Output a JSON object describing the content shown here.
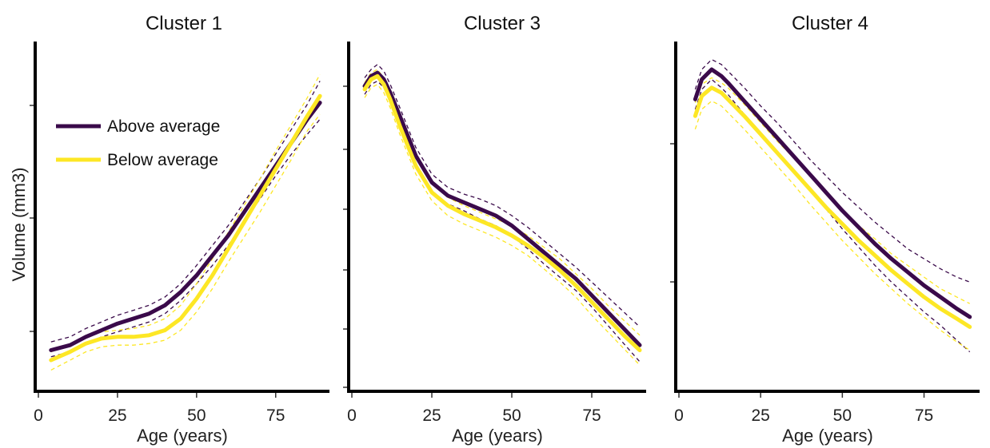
{
  "figure": {
    "ylabel": "Volume (mm3)",
    "colors": {
      "above": "#3a0a4a",
      "below": "#fde725"
    }
  },
  "legend": {
    "location": "upper-left of first panel",
    "entries": [
      {
        "name": "Above average",
        "color": "#3a0a4a"
      },
      {
        "name": "Below average",
        "color": "#fde725"
      }
    ]
  },
  "chart_data": [
    {
      "type": "line",
      "title": "Cluster 1",
      "xlabel": "Age (years)",
      "ylabel": "Volume (mm3)",
      "xlim": [
        0,
        92
      ],
      "ylim": [
        0,
        100
      ],
      "xticks": [
        0,
        25,
        50,
        75
      ],
      "yticks": [],
      "y_tick_labels_shown": false,
      "series": [
        {
          "name": "Above average",
          "x": [
            4,
            10,
            15,
            20,
            25,
            30,
            35,
            40,
            45,
            50,
            55,
            60,
            65,
            70,
            75,
            80,
            85,
            89
          ],
          "y": [
            9.5,
            11,
            13.5,
            15.5,
            17.5,
            19,
            20.5,
            23,
            27,
            32,
            38,
            44,
            51,
            58,
            65,
            72,
            79,
            84
          ],
          "ci_upper": [
            12,
            13.5,
            16,
            18,
            20,
            21.5,
            23,
            25.5,
            29.5,
            35,
            41,
            47,
            54,
            61,
            68.5,
            76,
            83.5,
            90.5
          ],
          "ci_lower": [
            7.5,
            9,
            11.5,
            13.5,
            15,
            16.5,
            18,
            20.5,
            24.5,
            29.5,
            35,
            41,
            48,
            55,
            62,
            68.5,
            74.5,
            79
          ]
        },
        {
          "name": "Below average",
          "x": [
            4,
            10,
            15,
            20,
            25,
            30,
            35,
            40,
            45,
            50,
            55,
            60,
            65,
            70,
            75,
            80,
            85,
            89
          ],
          "y": [
            6.5,
            9,
            11.5,
            13,
            13.5,
            13.5,
            14,
            15.5,
            19,
            25,
            32,
            40,
            48,
            56,
            64,
            72,
            80,
            86
          ],
          "ci_upper": [
            9,
            11.5,
            13.5,
            15,
            15.5,
            16,
            17,
            19,
            23,
            29.5,
            37,
            45,
            53,
            61,
            69.5,
            77.5,
            85.5,
            92.5
          ],
          "ci_lower": [
            3.5,
            6.5,
            9,
            10.5,
            11,
            11,
            11.5,
            12.5,
            15.5,
            21,
            28,
            36,
            43.5,
            51,
            59,
            67,
            75.5,
            80.5
          ]
        }
      ]
    },
    {
      "type": "line",
      "title": "Cluster 3",
      "xlabel": "Age (years)",
      "ylabel": "",
      "xlim": [
        0,
        92
      ],
      "ylim": [
        0,
        100
      ],
      "xticks": [
        0,
        25,
        50,
        75
      ],
      "yticks": [],
      "y_tick_labels_shown": false,
      "series": [
        {
          "name": "Above average",
          "x": [
            4,
            6,
            8,
            10,
            12,
            15,
            20,
            25,
            30,
            35,
            40,
            45,
            50,
            55,
            60,
            65,
            70,
            75,
            80,
            85,
            90
          ],
          "y": [
            89,
            92,
            93,
            91,
            87,
            80,
            68,
            60,
            56,
            54,
            52,
            50,
            47,
            43,
            39,
            35,
            31,
            26,
            21,
            16,
            11
          ],
          "ci_upper": [
            91.5,
            94,
            95.5,
            93.5,
            89.5,
            82.5,
            70.5,
            62.5,
            58.5,
            56.5,
            55,
            53,
            50,
            46.5,
            42.5,
            38.5,
            34.5,
            30,
            25.5,
            21,
            16.5
          ],
          "ci_lower": [
            86.5,
            89.5,
            90.5,
            88.5,
            84.5,
            77.5,
            65.5,
            57.5,
            53.5,
            51.5,
            49,
            47,
            44,
            40,
            35.5,
            31.5,
            27.5,
            22.5,
            17,
            11.5,
            6
          ]
        },
        {
          "name": "Below average",
          "x": [
            4,
            6,
            8,
            10,
            12,
            15,
            20,
            25,
            30,
            35,
            40,
            45,
            50,
            55,
            60,
            65,
            70,
            75,
            80,
            85,
            90
          ],
          "y": [
            88,
            91,
            92,
            89.5,
            85,
            77,
            65,
            57,
            53,
            50.5,
            48.5,
            46.5,
            44,
            41,
            37.5,
            33.5,
            29,
            24,
            19,
            14,
            9.5
          ],
          "ci_upper": [
            90,
            93,
            94,
            91.5,
            87,
            79,
            67.5,
            59.5,
            55.5,
            53,
            51,
            49,
            47,
            44,
            40.5,
            37,
            32.5,
            28,
            23,
            18.5,
            14
          ],
          "ci_lower": [
            85.5,
            88.5,
            89.5,
            87,
            82.5,
            74.5,
            62.5,
            54.5,
            50,
            47.5,
            45.5,
            43.5,
            41,
            38,
            34,
            30,
            25.5,
            20,
            15,
            10,
            5
          ]
        }
      ]
    },
    {
      "type": "line",
      "title": "Cluster 4",
      "xlabel": "Age (years)",
      "ylabel": "",
      "xlim": [
        0,
        92
      ],
      "ylim": [
        0,
        100
      ],
      "xticks": [
        0,
        25,
        50,
        75
      ],
      "yticks": [],
      "y_tick_labels_shown": false,
      "series": [
        {
          "name": "Above average",
          "x": [
            5,
            7,
            10,
            13,
            15,
            20,
            25,
            30,
            35,
            40,
            45,
            50,
            55,
            60,
            65,
            70,
            75,
            80,
            85,
            89
          ],
          "y": [
            85,
            91,
            94,
            92,
            90,
            84.5,
            79,
            73.5,
            68,
            62.5,
            57,
            51.5,
            46.5,
            41.5,
            37,
            33,
            29,
            25.5,
            22,
            19.5
          ],
          "ci_upper": [
            88,
            94,
            97,
            95.5,
            93.5,
            88.5,
            83,
            78,
            72.5,
            67,
            62,
            57,
            52.5,
            48,
            44,
            40,
            37,
            34,
            31.5,
            30
          ],
          "ci_lower": [
            82,
            88,
            91,
            88.5,
            86.5,
            80.5,
            75,
            69,
            63.5,
            57.5,
            52,
            46,
            40.5,
            35,
            30,
            25.5,
            21,
            17,
            12.5,
            9
          ]
        },
        {
          "name": "Below average",
          "x": [
            5,
            7,
            10,
            13,
            15,
            20,
            25,
            30,
            35,
            40,
            45,
            50,
            55,
            60,
            65,
            70,
            75,
            80,
            85,
            89
          ],
          "y": [
            80,
            86,
            88.5,
            87,
            85,
            80,
            74.5,
            69,
            63.5,
            58,
            52.5,
            47.5,
            42.5,
            38,
            33.5,
            29.5,
            25.5,
            22,
            19,
            16.5
          ],
          "ci_upper": [
            84,
            89.5,
            91.5,
            90,
            88.5,
            83.5,
            78,
            72.5,
            67.5,
            62,
            57,
            52,
            47,
            43,
            38.5,
            35,
            31.5,
            28,
            25.5,
            23.5
          ],
          "ci_lower": [
            76,
            82,
            84.5,
            83,
            81,
            76,
            70.5,
            65,
            59.5,
            53.5,
            48,
            42.5,
            37.5,
            32.5,
            28,
            23.5,
            19.5,
            15.5,
            12,
            9.5
          ]
        }
      ]
    }
  ]
}
